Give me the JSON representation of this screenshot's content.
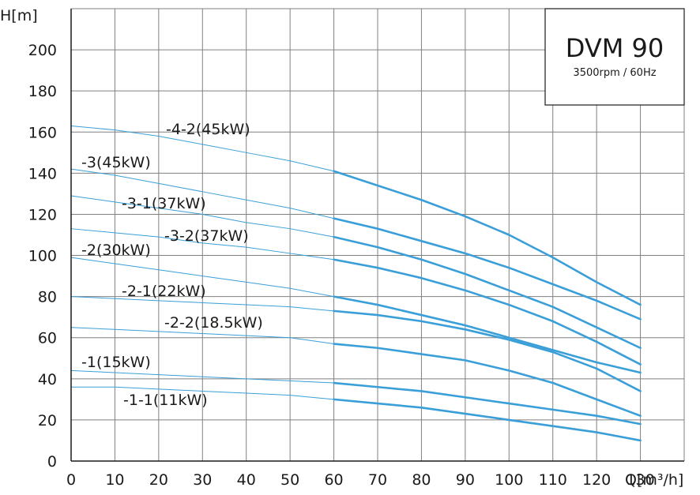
{
  "chart_data": {
    "type": "line",
    "title": "DVM 90",
    "subtitle": "3500rpm / 60Hz",
    "xlabel": "Q[m³/h]",
    "ylabel": "H[m]",
    "xlim": [
      0,
      140
    ],
    "ylim": [
      0,
      220
    ],
    "x_ticks": [
      0,
      10,
      20,
      30,
      40,
      50,
      60,
      70,
      80,
      90,
      100,
      110,
      120,
      130
    ],
    "y_ticks": [
      0,
      20,
      40,
      60,
      80,
      100,
      120,
      140,
      160,
      180,
      200
    ],
    "grid": true,
    "legend": "none",
    "colors": {
      "curve": "#3a9fd8",
      "grid": "#808080",
      "axis": "#1a1a1a"
    },
    "series": [
      {
        "name": "-4-2(45kW)",
        "x": [
          0,
          10,
          20,
          30,
          40,
          50,
          60,
          70,
          80,
          90,
          100,
          110,
          120,
          130
        ],
        "y": [
          163,
          161,
          158,
          154,
          150,
          146,
          141,
          134,
          127,
          119,
          110,
          99,
          87,
          76
        ]
      },
      {
        "name": "-3(45kW)",
        "x": [
          0,
          10,
          20,
          30,
          40,
          50,
          60,
          70,
          80,
          90,
          100,
          110,
          120,
          130
        ],
        "y": [
          142,
          139,
          135,
          131,
          127,
          123,
          118,
          113,
          107,
          101,
          94,
          86,
          78,
          69
        ]
      },
      {
        "name": "-3-1(37kW)",
        "x": [
          0,
          10,
          20,
          30,
          40,
          50,
          60,
          70,
          80,
          90,
          100,
          110,
          120,
          130
        ],
        "y": [
          129,
          126,
          123,
          120,
          116,
          113,
          109,
          104,
          98,
          91,
          83,
          75,
          65,
          55
        ]
      },
      {
        "name": "-3-2(37kW)",
        "x": [
          0,
          10,
          20,
          30,
          40,
          50,
          60,
          70,
          80,
          90,
          100,
          110,
          120,
          130
        ],
        "y": [
          113,
          111,
          109,
          106,
          104,
          101,
          98,
          94,
          89,
          83,
          76,
          68,
          58,
          47
        ]
      },
      {
        "name": "-2(30kW)",
        "x": [
          0,
          10,
          20,
          30,
          40,
          50,
          60,
          70,
          80,
          90,
          100,
          110,
          120,
          130
        ],
        "y": [
          99,
          96,
          93,
          90,
          87,
          84,
          80,
          76,
          71,
          66,
          60,
          54,
          48,
          43
        ]
      },
      {
        "name": "-2-1(22kW)",
        "x": [
          0,
          10,
          20,
          30,
          40,
          50,
          60,
          70,
          80,
          90,
          100,
          110,
          120,
          130
        ],
        "y": [
          80,
          79,
          78,
          77,
          76,
          75,
          73,
          71,
          68,
          64,
          59,
          53,
          45,
          34
        ]
      },
      {
        "name": "-2-2(18.5kW)",
        "x": [
          0,
          10,
          20,
          30,
          40,
          50,
          60,
          70,
          80,
          90,
          100,
          110,
          120,
          130
        ],
        "y": [
          65,
          64,
          63,
          62,
          61,
          60,
          57,
          55,
          52,
          49,
          44,
          38,
          30,
          22
        ]
      },
      {
        "name": "-1(15kW)",
        "x": [
          0,
          10,
          20,
          30,
          40,
          50,
          60,
          70,
          80,
          90,
          100,
          110,
          120,
          130
        ],
        "y": [
          44,
          43,
          42,
          41,
          40,
          39,
          38,
          36,
          34,
          31,
          28,
          25,
          22,
          18
        ]
      },
      {
        "name": "-1-1(11kW)",
        "x": [
          0,
          10,
          20,
          30,
          40,
          50,
          60,
          70,
          80,
          90,
          100,
          110,
          120,
          130
        ],
        "y": [
          36,
          36,
          35,
          34,
          33,
          32,
          30,
          28,
          26,
          23,
          20,
          17,
          14,
          10
        ]
      }
    ]
  }
}
